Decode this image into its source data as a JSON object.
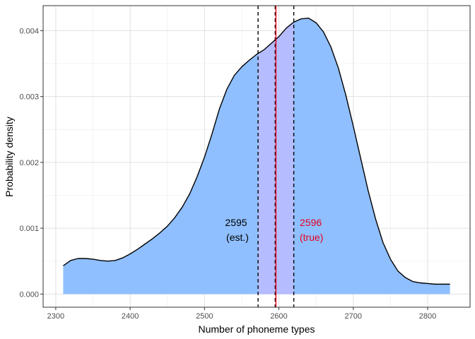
{
  "chart_data": {
    "type": "area",
    "title": "",
    "xlabel": "Number of phoneme types",
    "ylabel": "Probability density",
    "xlim": [
      2283,
      2857
    ],
    "ylim": [
      -0.0002,
      0.00438
    ],
    "x_ticks": [
      2300,
      2400,
      2500,
      2600,
      2700,
      2800
    ],
    "x_tick_labels": [
      "2300",
      "2400",
      "2500",
      "2600",
      "2700",
      "2800"
    ],
    "y_ticks": [
      0.0,
      0.001,
      0.002,
      0.003,
      0.004
    ],
    "y_tick_labels": [
      "0.000",
      "0.001",
      "0.002",
      "0.003",
      "0.004"
    ],
    "grid": true,
    "legend": "none",
    "series": [
      {
        "x": [
          2310,
          2320,
          2330,
          2340,
          2350,
          2360,
          2370,
          2380,
          2390,
          2400,
          2410,
          2420,
          2430,
          2440,
          2450,
          2460,
          2470,
          2480,
          2490,
          2500,
          2510,
          2520,
          2530,
          2540,
          2550,
          2560,
          2570,
          2580,
          2590,
          2600,
          2610,
          2620,
          2630,
          2640,
          2650,
          2660,
          2670,
          2680,
          2690,
          2700,
          2710,
          2720,
          2730,
          2740,
          2750,
          2760,
          2770,
          2780,
          2790,
          2800,
          2810,
          2820,
          2830
        ],
        "y": [
          0.00043,
          0.00051,
          0.00054,
          0.00054,
          0.00053,
          0.00051,
          0.0005,
          0.00051,
          0.00055,
          0.00061,
          0.00068,
          0.00076,
          0.00084,
          0.00093,
          0.00103,
          0.00116,
          0.00132,
          0.00152,
          0.00178,
          0.00208,
          0.00243,
          0.00281,
          0.00311,
          0.00332,
          0.00345,
          0.00355,
          0.00364,
          0.00371,
          0.00381,
          0.00391,
          0.00404,
          0.00413,
          0.00418,
          0.00419,
          0.00412,
          0.00398,
          0.00375,
          0.00343,
          0.00302,
          0.00255,
          0.00206,
          0.00157,
          0.00114,
          0.00078,
          0.00053,
          0.00035,
          0.00025,
          0.00019,
          0.00017,
          0.00016,
          0.00015,
          0.00015,
          0.00015
        ],
        "fill": "#8fbfff",
        "line": "#000000"
      }
    ],
    "interval": {
      "x_min": 2572,
      "x_max": 2620,
      "fill": "#b5bcff"
    },
    "vlines": [
      {
        "x": 2572,
        "style": "dashed",
        "color": "#000000"
      },
      {
        "x": 2595,
        "style": "dashed",
        "color": "#000000"
      },
      {
        "x": 2596,
        "style": "solid",
        "color": "#e8001f"
      },
      {
        "x": 2620,
        "style": "dashed",
        "color": "#000000"
      }
    ],
    "annotations": {
      "est_value": {
        "text": "2595",
        "color": "#000000"
      },
      "est_label": {
        "text": "(est.)",
        "color": "#000000"
      },
      "true_value": {
        "text": "2596",
        "color": "#e8001f"
      },
      "true_label": {
        "text": "(true)",
        "color": "#e8001f"
      }
    }
  }
}
